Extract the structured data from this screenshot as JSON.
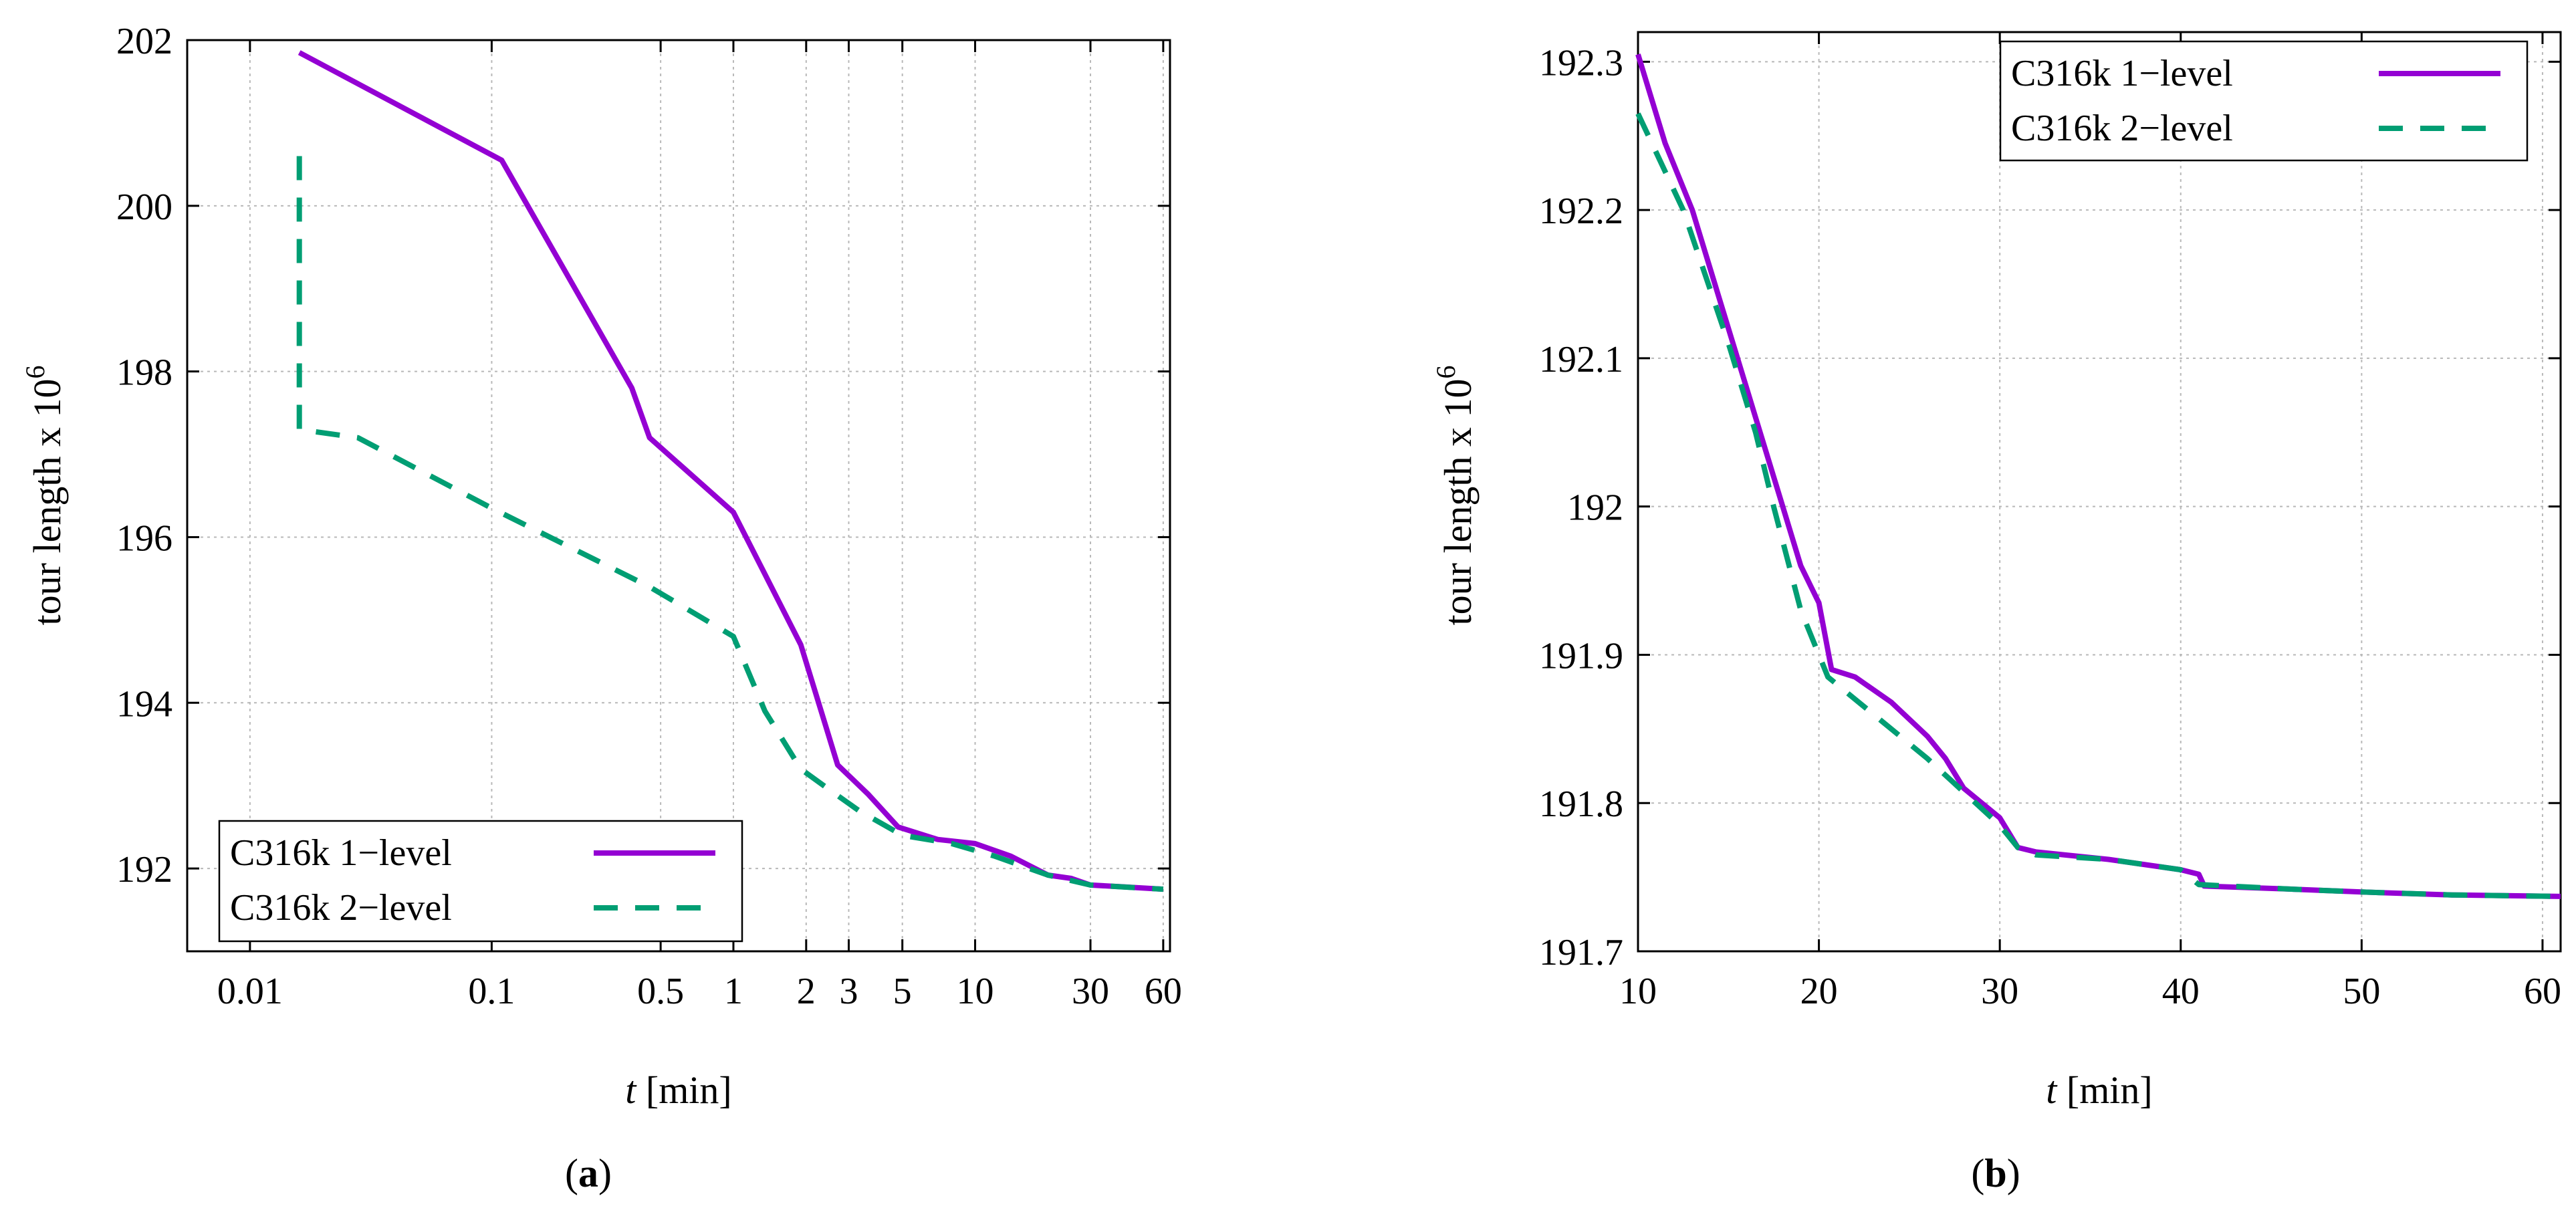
{
  "chart_data": [
    {
      "id": "a",
      "type": "line",
      "panel_label": "a",
      "xlabel_var": "t",
      "xlabel_unit": " [min]",
      "ylabel_base": "tour length x 10",
      "ylabel_exp": "6",
      "x_scale": "log",
      "xlim": [
        0.0055,
        64
      ],
      "ylim": [
        191,
        202
      ],
      "x_ticks": [
        {
          "value": 0.01,
          "label": "0.01"
        },
        {
          "value": 0.1,
          "label": "0.1"
        },
        {
          "value": 0.5,
          "label": "0.5"
        },
        {
          "value": 1,
          "label": "1"
        },
        {
          "value": 2,
          "label": "2"
        },
        {
          "value": 3,
          "label": "3"
        },
        {
          "value": 5,
          "label": "5"
        },
        {
          "value": 10,
          "label": "10"
        },
        {
          "value": 30,
          "label": "30"
        },
        {
          "value": 60,
          "label": "60"
        }
      ],
      "y_ticks": [
        {
          "value": 192,
          "label": "192"
        },
        {
          "value": 194,
          "label": "194"
        },
        {
          "value": 196,
          "label": "196"
        },
        {
          "value": 198,
          "label": "198"
        },
        {
          "value": 200,
          "label": "200"
        },
        {
          "value": 202,
          "label": "202"
        }
      ],
      "grid": true,
      "legend_position": "bottom-left",
      "series": [
        {
          "name": "C316k 1−level",
          "color": "#9400d3",
          "dash": "solid",
          "points": [
            [
              0.016,
              201.85
            ],
            [
              0.11,
              200.55
            ],
            [
              0.38,
              197.8
            ],
            [
              0.45,
              197.2
            ],
            [
              1.0,
              196.3
            ],
            [
              1.9,
              194.7
            ],
            [
              2.7,
              193.25
            ],
            [
              3.6,
              192.9
            ],
            [
              4.8,
              192.5
            ],
            [
              7.0,
              192.35
            ],
            [
              10.0,
              192.3
            ],
            [
              14.0,
              192.15
            ],
            [
              20.0,
              191.92
            ],
            [
              25.0,
              191.88
            ],
            [
              30.0,
              191.8
            ],
            [
              40.0,
              191.78
            ],
            [
              60.0,
              191.75
            ]
          ]
        },
        {
          "name": "C316k 2−level",
          "color": "#009e73",
          "dash": "dashed",
          "points": [
            [
              0.016,
              200.6
            ],
            [
              0.016,
              197.3
            ],
            [
              0.028,
              197.2
            ],
            [
              0.1,
              196.35
            ],
            [
              0.45,
              195.4
            ],
            [
              1.0,
              194.8
            ],
            [
              1.35,
              193.9
            ],
            [
              1.9,
              193.2
            ],
            [
              2.5,
              192.95
            ],
            [
              3.3,
              192.7
            ],
            [
              5.0,
              192.4
            ],
            [
              8.0,
              192.3
            ],
            [
              12.0,
              192.15
            ],
            [
              20.0,
              191.92
            ],
            [
              30.0,
              191.8
            ],
            [
              45.0,
              191.77
            ],
            [
              60.0,
              191.75
            ]
          ]
        }
      ]
    },
    {
      "id": "b",
      "type": "line",
      "panel_label": "b",
      "xlabel_var": "t",
      "xlabel_unit": " [min]",
      "ylabel_base": "tour length x 10",
      "ylabel_exp": "6",
      "x_scale": "linear",
      "xlim": [
        10,
        61
      ],
      "ylim": [
        191.7,
        192.32
      ],
      "x_ticks": [
        {
          "value": 10,
          "label": "10"
        },
        {
          "value": 20,
          "label": "20"
        },
        {
          "value": 30,
          "label": "30"
        },
        {
          "value": 40,
          "label": "40"
        },
        {
          "value": 50,
          "label": "50"
        },
        {
          "value": 60,
          "label": "60"
        }
      ],
      "y_ticks": [
        {
          "value": 191.7,
          "label": "191.7"
        },
        {
          "value": 191.8,
          "label": "191.8"
        },
        {
          "value": 191.9,
          "label": "191.9"
        },
        {
          "value": 192.0,
          "label": "192"
        },
        {
          "value": 192.1,
          "label": "192.1"
        },
        {
          "value": 192.2,
          "label": "192.2"
        },
        {
          "value": 192.3,
          "label": "192.3"
        }
      ],
      "grid": true,
      "legend_position": "top-right",
      "series": [
        {
          "name": "C316k 1−level",
          "color": "#9400d3",
          "dash": "solid",
          "points": [
            [
              10.0,
              192.305
            ],
            [
              11.5,
              192.245
            ],
            [
              13.0,
              192.2
            ],
            [
              14.5,
              192.14
            ],
            [
              16.0,
              192.08
            ],
            [
              18.0,
              192.0
            ],
            [
              19.0,
              191.96
            ],
            [
              20.0,
              191.935
            ],
            [
              20.7,
              191.89
            ],
            [
              22.0,
              191.885
            ],
            [
              24.0,
              191.868
            ],
            [
              26.0,
              191.845
            ],
            [
              27.0,
              191.83
            ],
            [
              28.0,
              191.81
            ],
            [
              30.0,
              191.79
            ],
            [
              31.0,
              191.77
            ],
            [
              32.0,
              191.767
            ],
            [
              36.0,
              191.762
            ],
            [
              40.0,
              191.755
            ],
            [
              41.0,
              191.752
            ],
            [
              41.3,
              191.744
            ],
            [
              46.0,
              191.742
            ],
            [
              50.0,
              191.74
            ],
            [
              55.0,
              191.738
            ],
            [
              61.0,
              191.737
            ]
          ]
        },
        {
          "name": "C316k 2−level",
          "color": "#009e73",
          "dash": "dashed",
          "points": [
            [
              10.0,
              192.265
            ],
            [
              12.5,
              192.2
            ],
            [
              15.0,
              192.11
            ],
            [
              16.5,
              192.05
            ],
            [
              17.5,
              192.0
            ],
            [
              19.0,
              191.93
            ],
            [
              20.5,
              191.885
            ],
            [
              23.0,
              191.86
            ],
            [
              26.0,
              191.83
            ],
            [
              30.0,
              191.785
            ],
            [
              31.0,
              191.77
            ],
            [
              32.0,
              191.765
            ],
            [
              36.0,
              191.762
            ],
            [
              40.0,
              191.755
            ],
            [
              41.0,
              191.745
            ],
            [
              46.0,
              191.742
            ],
            [
              50.0,
              191.74
            ],
            [
              55.0,
              191.738
            ],
            [
              61.0,
              191.737
            ]
          ]
        }
      ]
    }
  ]
}
